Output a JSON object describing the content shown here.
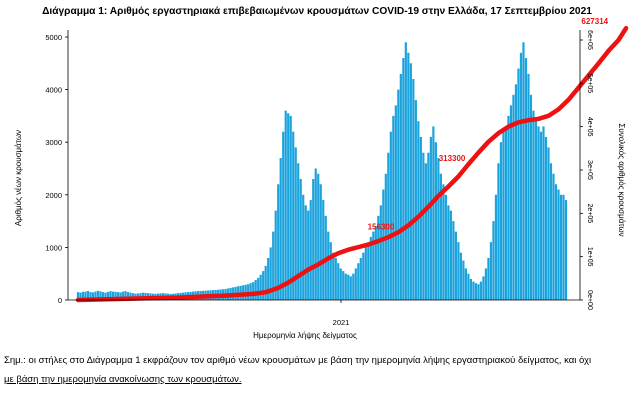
{
  "chart_data": {
    "type": "bar",
    "title": "Διάγραμμα 1: Αριθμός εργαστηριακά επιβεβαιωμένων κρουσμάτων COVID-19 στην Ελλάδα, 17 Σεπτεμβρίου 2021",
    "xlabel": "Ημερομηνία λήψης δείγματος",
    "ylabel": "Αριθμός νέων κρουσμάτων",
    "y2label": "Συνολικός αριθμός κρουσμάτων",
    "x_tick_label": "2021",
    "ylim": [
      0,
      5000
    ],
    "yticks": [
      "0",
      "1000",
      "2000",
      "3000",
      "4000",
      "5000"
    ],
    "y2lim": [
      0,
      600000
    ],
    "y2ticks": [
      "0e+00",
      "1e+05",
      "2e+05",
      "3e+05",
      "4e+05",
      "5e+05",
      "6e+05"
    ],
    "bar_color": "#1ba3dd",
    "line_color": "#ee1111",
    "bar_series": {
      "name": "Νέα κρούσματα",
      "note": "daily new cases, one value per day (approximate weekly-smoothed reconstruction)",
      "values": [
        150,
        140,
        155,
        160,
        170,
        150,
        145,
        160,
        175,
        165,
        150,
        140,
        155,
        170,
        160,
        155,
        150,
        145,
        160,
        170,
        150,
        140,
        130,
        120,
        125,
        130,
        140,
        135,
        130,
        125,
        120,
        118,
        122,
        128,
        130,
        125,
        120,
        115,
        118,
        124,
        130,
        135,
        140,
        145,
        150,
        155,
        160,
        165,
        170,
        172,
        175,
        178,
        180,
        185,
        188,
        190,
        195,
        200,
        205,
        210,
        220,
        230,
        240,
        250,
        260,
        270,
        280,
        290,
        300,
        320,
        340,
        380,
        420,
        480,
        550,
        650,
        800,
        1000,
        1300,
        1700,
        2200,
        2700,
        3200,
        3600,
        3550,
        3500,
        3200,
        2900,
        2600,
        2300,
        2000,
        1800,
        1700,
        1900,
        2300,
        2500,
        2400,
        2200,
        1900,
        1600,
        1300,
        1100,
        900,
        800,
        700,
        600,
        550,
        500,
        480,
        450,
        500,
        600,
        700,
        800,
        900,
        1000,
        1100,
        1200,
        1300,
        1400,
        1600,
        1800,
        2100,
        2400,
        2800,
        3200,
        3500,
        3700,
        4000,
        4300,
        4600,
        4900,
        4700,
        4500,
        4200,
        3800,
        3400,
        3100,
        2800,
        2600,
        2800,
        3100,
        3300,
        3000,
        2700,
        2400,
        2200,
        2000,
        1800,
        1700,
        1500,
        1300,
        1100,
        900,
        750,
        600,
        500,
        400,
        350,
        320,
        300,
        350,
        450,
        600,
        800,
        1100,
        1500,
        2000,
        2600,
        3000,
        3200,
        3300,
        3500,
        3700,
        3900,
        4100,
        4400,
        4700,
        4900,
        4600,
        4300,
        3900,
        3600,
        3400,
        3300,
        3200,
        3300,
        3100,
        2900,
        2600,
        2400,
        2200,
        2100,
        2000,
        2000,
        1900
      ]
    },
    "line_series": {
      "name": "Συνολικά κρούσματα",
      "note": "cumulative total cases, one value per day (approximate)",
      "points": [
        [
          0,
          0
        ],
        [
          10,
          1500
        ],
        [
          20,
          3000
        ],
        [
          30,
          4200
        ],
        [
          40,
          5500
        ],
        [
          50,
          8000
        ],
        [
          60,
          10500
        ],
        [
          70,
          14000
        ],
        [
          75,
          18000
        ],
        [
          80,
          28000
        ],
        [
          84,
          40000
        ],
        [
          88,
          55000
        ],
        [
          92,
          70000
        ],
        [
          96,
          82000
        ],
        [
          100,
          96000
        ],
        [
          104,
          108000
        ],
        [
          108,
          116000
        ],
        [
          112,
          122000
        ],
        [
          116,
          128000
        ],
        [
          120,
          136000
        ],
        [
          124,
          145000
        ],
        [
          128,
          156300
        ],
        [
          132,
          172000
        ],
        [
          136,
          192000
        ],
        [
          140,
          215000
        ],
        [
          144,
          240000
        ],
        [
          148,
          262000
        ],
        [
          152,
          285000
        ],
        [
          156,
          313300
        ],
        [
          160,
          340000
        ],
        [
          164,
          365000
        ],
        [
          168,
          385000
        ],
        [
          172,
          400000
        ],
        [
          176,
          410000
        ],
        [
          180,
          415000
        ],
        [
          184,
          418000
        ],
        [
          188,
          425000
        ],
        [
          192,
          440000
        ],
        [
          196,
          462000
        ],
        [
          200,
          490000
        ],
        [
          204,
          518000
        ],
        [
          208,
          546000
        ],
        [
          212,
          575000
        ],
        [
          216,
          600000
        ],
        [
          219,
          627314
        ]
      ]
    },
    "annotations": [
      {
        "label": "156300",
        "x": 128,
        "y": 156300,
        "color": "#ee1111"
      },
      {
        "label": "313300",
        "x": 156,
        "y": 313300,
        "color": "#ee1111"
      },
      {
        "label": "627314",
        "x": 219,
        "y": 627314,
        "color": "#ee1111"
      }
    ],
    "grid": false,
    "legend": "none"
  },
  "footnote": {
    "line1": "Σημ.: οι στήλες στο Διάγραμμα 1 εκφράζουν τον αριθμό νέων κρουσμάτων με βάση την ημερομηνία λήψης εργαστηριακού δείγματος, και όχι",
    "line2": "με βάση την ημερομηνία ανακοίνωσης των κρουσμάτων."
  }
}
